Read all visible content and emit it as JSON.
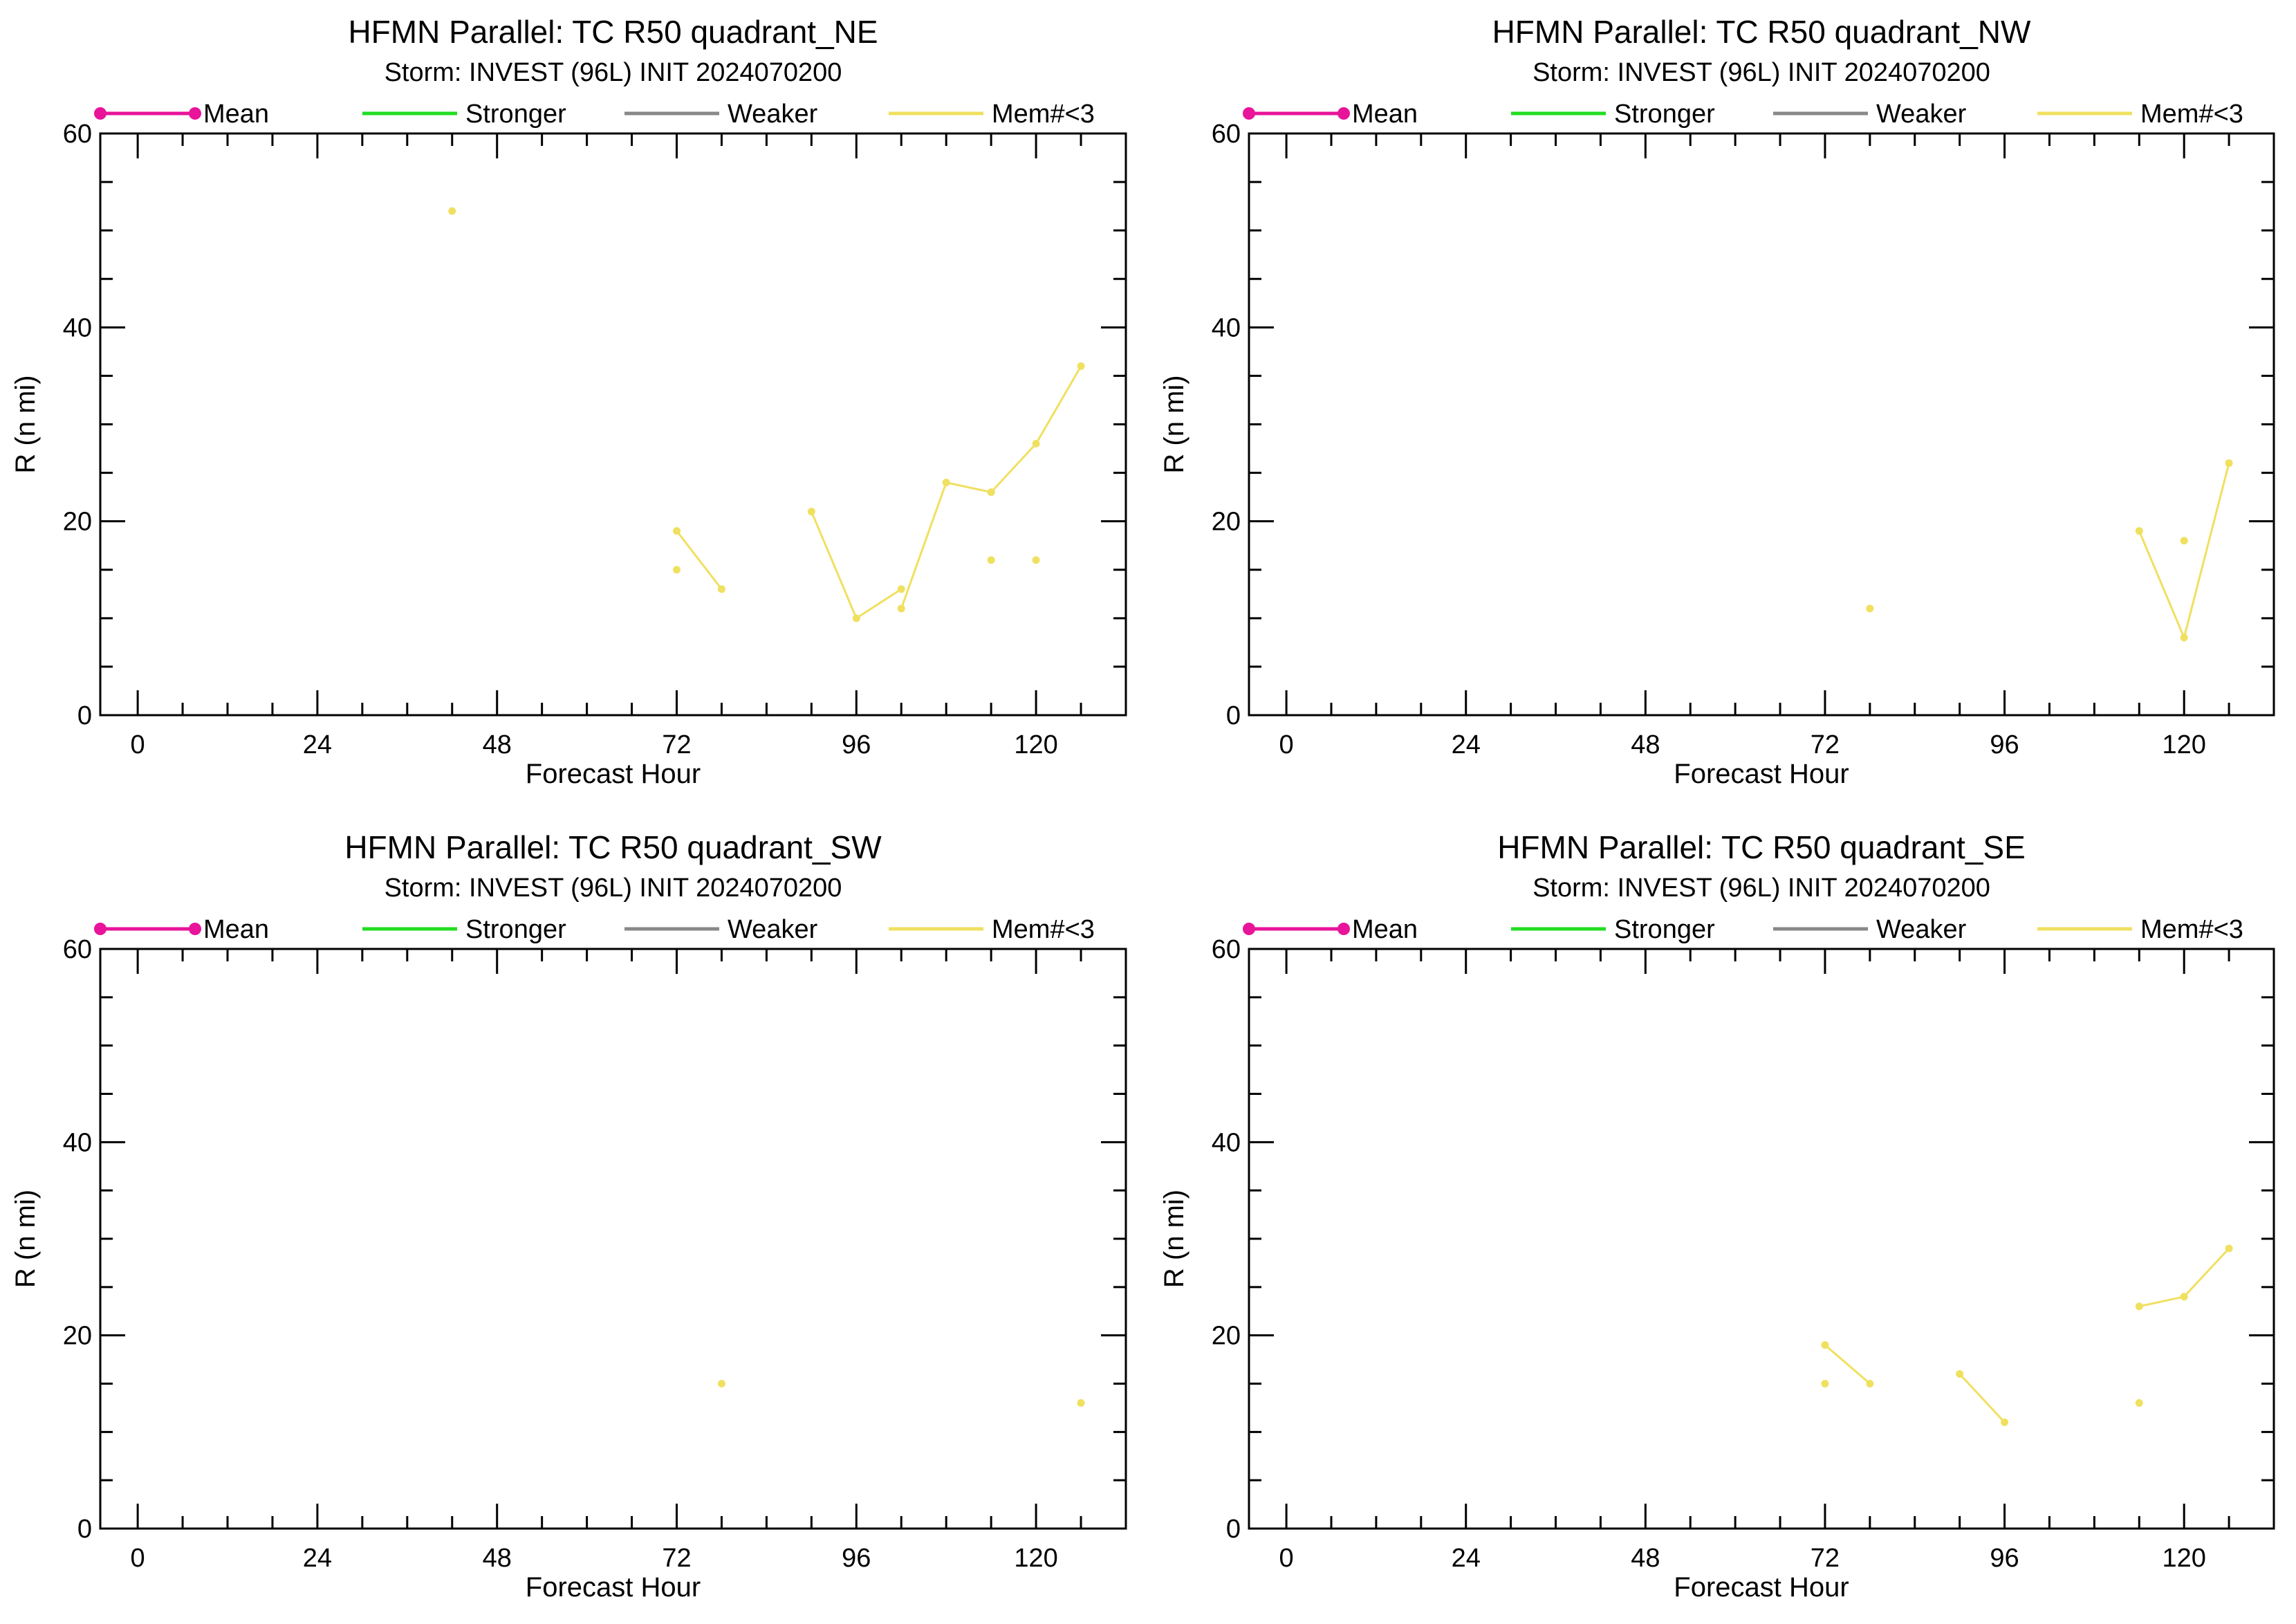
{
  "chart_data": [
    {
      "type": "line",
      "title": "HFMN Parallel: TC  R50 quadrant_NE",
      "subtitle": "Storm: INVEST (96L) INIT 2024070200",
      "xlabel": "Forecast Hour",
      "ylabel": "R (n mi)",
      "xlim": [
        -5,
        132
      ],
      "ylim": [
        0,
        60
      ],
      "xticks": [
        0,
        24,
        48,
        72,
        96,
        120
      ],
      "yticks": [
        0,
        20,
        40,
        60
      ],
      "legend": [
        {
          "name": "Mean",
          "color": "#e8149a",
          "markers": true
        },
        {
          "name": "Stronger",
          "color": "#22dd22"
        },
        {
          "name": "Weaker",
          "color": "#888888"
        },
        {
          "name": "Mem#<3",
          "color": "#f0e060"
        }
      ],
      "series": [
        {
          "color": "#f0e060",
          "points": [
            [
              42,
              52
            ]
          ]
        },
        {
          "color": "#f0e060",
          "points": [
            [
              72,
              19
            ],
            [
              78,
              13
            ]
          ]
        },
        {
          "color": "#f0e060",
          "points": [
            [
              72,
              15
            ]
          ]
        },
        {
          "color": "#f0e060",
          "points": [
            [
              90,
              21
            ],
            [
              96,
              10
            ],
            [
              102,
              13
            ]
          ]
        },
        {
          "color": "#f0e060",
          "points": [
            [
              102,
              11
            ],
            [
              108,
              24
            ],
            [
              114,
              23
            ],
            [
              120,
              28
            ],
            [
              126,
              36
            ]
          ]
        },
        {
          "color": "#f0e060",
          "points": [
            [
              114,
              16
            ]
          ]
        },
        {
          "color": "#f0e060",
          "points": [
            [
              120,
              16
            ]
          ]
        }
      ]
    },
    {
      "type": "line",
      "title": "HFMN Parallel: TC  R50 quadrant_NW",
      "subtitle": "Storm: INVEST (96L) INIT 2024070200",
      "xlabel": "Forecast Hour",
      "ylabel": "R (n mi)",
      "xlim": [
        -5,
        132
      ],
      "ylim": [
        0,
        60
      ],
      "xticks": [
        0,
        24,
        48,
        72,
        96,
        120
      ],
      "yticks": [
        0,
        20,
        40,
        60
      ],
      "legend": [
        {
          "name": "Mean",
          "color": "#e8149a",
          "markers": true
        },
        {
          "name": "Stronger",
          "color": "#22dd22"
        },
        {
          "name": "Weaker",
          "color": "#888888"
        },
        {
          "name": "Mem#<3",
          "color": "#f0e060"
        }
      ],
      "series": [
        {
          "color": "#f0e060",
          "points": [
            [
              78,
              11
            ]
          ]
        },
        {
          "color": "#f0e060",
          "points": [
            [
              114,
              19
            ],
            [
              120,
              8
            ],
            [
              126,
              26
            ]
          ]
        },
        {
          "color": "#f0e060",
          "points": [
            [
              120,
              18
            ]
          ]
        }
      ]
    },
    {
      "type": "line",
      "title": "HFMN Parallel: TC  R50 quadrant_SW",
      "subtitle": "Storm: INVEST (96L) INIT 2024070200",
      "xlabel": "Forecast Hour",
      "ylabel": "R (n mi)",
      "xlim": [
        -5,
        132
      ],
      "ylim": [
        0,
        60
      ],
      "xticks": [
        0,
        24,
        48,
        72,
        96,
        120
      ],
      "yticks": [
        0,
        20,
        40,
        60
      ],
      "legend": [
        {
          "name": "Mean",
          "color": "#e8149a",
          "markers": true
        },
        {
          "name": "Stronger",
          "color": "#22dd22"
        },
        {
          "name": "Weaker",
          "color": "#888888"
        },
        {
          "name": "Mem#<3",
          "color": "#f0e060"
        }
      ],
      "series": [
        {
          "color": "#f0e060",
          "points": [
            [
              78,
              15
            ]
          ]
        },
        {
          "color": "#f0e060",
          "points": [
            [
              126,
              13
            ]
          ]
        }
      ]
    },
    {
      "type": "line",
      "title": "HFMN Parallel: TC  R50 quadrant_SE",
      "subtitle": "Storm: INVEST (96L) INIT 2024070200",
      "xlabel": "Forecast Hour",
      "ylabel": "R (n mi)",
      "xlim": [
        -5,
        132
      ],
      "ylim": [
        0,
        60
      ],
      "xticks": [
        0,
        24,
        48,
        72,
        96,
        120
      ],
      "yticks": [
        0,
        20,
        40,
        60
      ],
      "legend": [
        {
          "name": "Mean",
          "color": "#e8149a",
          "markers": true
        },
        {
          "name": "Stronger",
          "color": "#22dd22"
        },
        {
          "name": "Weaker",
          "color": "#888888"
        },
        {
          "name": "Mem#<3",
          "color": "#f0e060"
        }
      ],
      "series": [
        {
          "color": "#f0e060",
          "points": [
            [
              72,
              19
            ],
            [
              78,
              15
            ]
          ]
        },
        {
          "color": "#f0e060",
          "points": [
            [
              72,
              15
            ]
          ]
        },
        {
          "color": "#f0e060",
          "points": [
            [
              90,
              16
            ],
            [
              96,
              11
            ]
          ]
        },
        {
          "color": "#f0e060",
          "points": [
            [
              114,
              23
            ],
            [
              120,
              24
            ],
            [
              126,
              29
            ]
          ]
        },
        {
          "color": "#f0e060",
          "points": [
            [
              114,
              13
            ]
          ]
        }
      ]
    }
  ]
}
